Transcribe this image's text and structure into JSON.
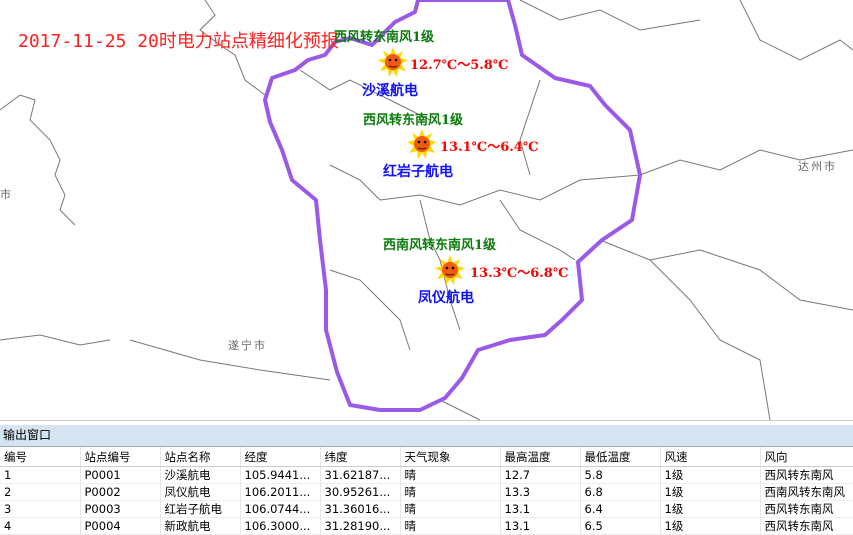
{
  "title": "2017-11-25 20时电力站点精细化预报",
  "cities": [
    "达州市",
    "遂宁市",
    "市"
  ],
  "stations_map": [
    {
      "wind": "西风转东南风1级",
      "temp": "12.7℃～5.8℃",
      "name": "沙溪航电",
      "weather_icon": "sunny-icon"
    },
    {
      "wind": "西风转东南风1级",
      "temp": "13.1℃～6.4℃",
      "name": "红岩子航电",
      "weather_icon": "sunny-icon"
    },
    {
      "wind": "西南风转东南风1级",
      "temp": "13.3℃～6.8℃",
      "name": "凤仪航电",
      "weather_icon": "sunny-icon"
    }
  ],
  "colors": {
    "boundary": "#9b59e8",
    "title": "#ff2020",
    "wind": "#0a7a0a",
    "name": "#1010ff"
  },
  "panel": {
    "title": "输出窗口",
    "columns": [
      "编号",
      "站点编号",
      "站点名称",
      "经度",
      "纬度",
      "天气现象",
      "最高温度",
      "最低温度",
      "风速",
      "风向"
    ],
    "rows": [
      [
        "1",
        "P0001",
        "沙溪航电",
        "105.9441...",
        "31.62187...",
        "晴",
        "12.7",
        "5.8",
        "1级",
        "西风转东南风"
      ],
      [
        "2",
        "P0002",
        "凤仪航电",
        "106.2011...",
        "30.95261...",
        "晴",
        "13.3",
        "6.8",
        "1级",
        "西南风转东南风"
      ],
      [
        "3",
        "P0003",
        "红岩子航电",
        "106.0744...",
        "31.36016...",
        "晴",
        "13.1",
        "6.4",
        "1级",
        "西风转东南风"
      ],
      [
        "4",
        "P0004",
        "新政航电",
        "106.3000...",
        "31.28190...",
        "晴",
        "13.1",
        "6.5",
        "1级",
        "西风转东南风"
      ]
    ]
  }
}
